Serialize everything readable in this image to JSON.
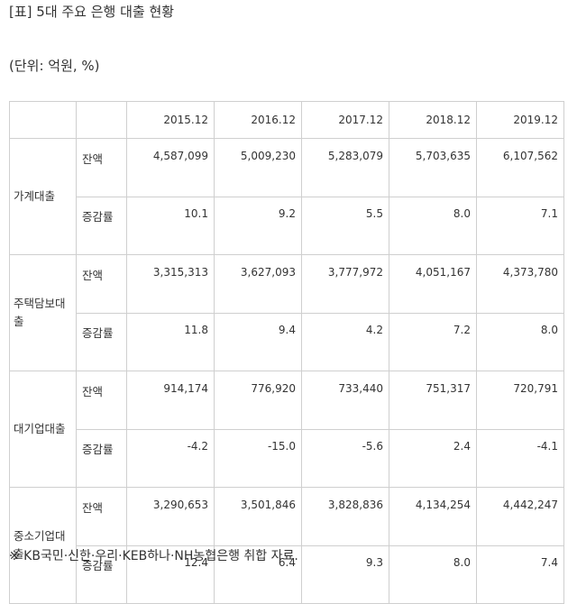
{
  "title": "[표] 5대 주요 은행 대출 현황",
  "unit": "(단위: 억원, %)",
  "table": {
    "years": [
      "2015.12",
      "2016.12",
      "2017.12",
      "2018.12",
      "2019.12"
    ],
    "rows": [
      {
        "category": "가계대출",
        "balance_label": "잔액",
        "balance": [
          "4,587,099",
          "5,009,230",
          "5,283,079",
          "5,703,635",
          "6,107,562"
        ],
        "growth_label": "증감률",
        "growth": [
          "10.1",
          "9.2",
          "5.5",
          "8.0",
          "7.1"
        ]
      },
      {
        "category": "주택담보대출",
        "balance_label": "잔액",
        "balance": [
          "3,315,313",
          "3,627,093",
          "3,777,972",
          "4,051,167",
          "4,373,780"
        ],
        "growth_label": "증감률",
        "growth": [
          "11.8",
          "9.4",
          "4.2",
          "7.2",
          "8.0"
        ]
      },
      {
        "category": "대기업대출",
        "balance_label": "잔액",
        "balance": [
          "914,174",
          "776,920",
          "733,440",
          "751,317",
          "720,791"
        ],
        "growth_label": "증감률",
        "growth": [
          "-4.2",
          "-15.0",
          "-5.6",
          "2.4",
          "-4.1"
        ]
      },
      {
        "category": "중소기업대출",
        "balance_label": "잔액",
        "balance": [
          "3,290,653",
          "3,501,846",
          "3,828,836",
          "4,134,254",
          "4,442,247"
        ],
        "growth_label": "증감률",
        "growth": [
          "12.4",
          "6.4",
          "9.3",
          "8.0",
          "7.4"
        ]
      }
    ]
  },
  "source": "※ KB국민·신한·우리·KEB하나·NH농협은행 취합 자료."
}
